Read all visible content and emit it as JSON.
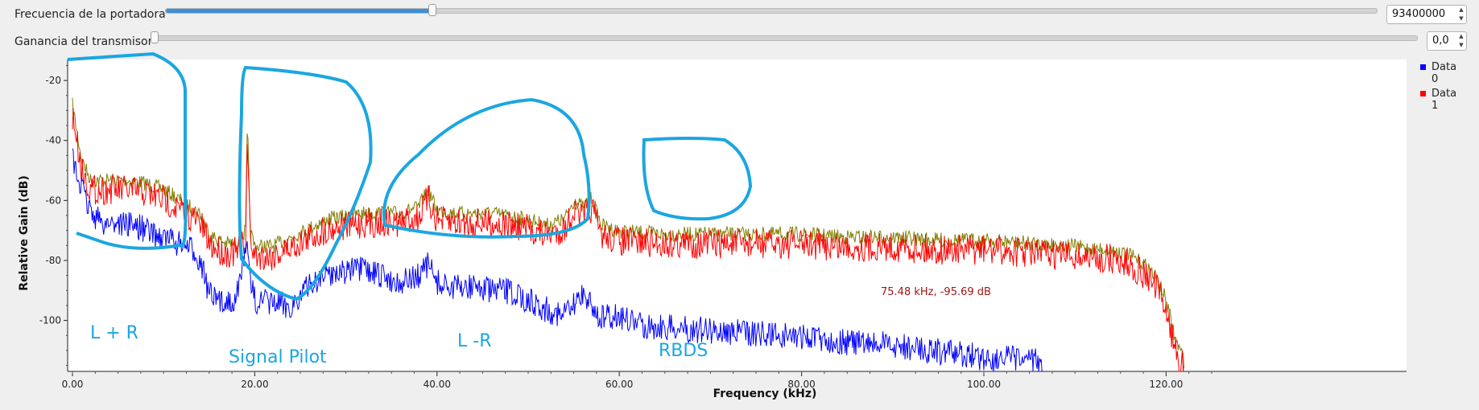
{
  "controls": {
    "carrier_frequency": {
      "label": "Frecuencia de la portadora",
      "value": "93400000",
      "slider_fraction": 0.22
    },
    "transmitter_gain": {
      "label": "Ganancia del transmisor",
      "value": "0,0",
      "slider_fraction": 0.0
    }
  },
  "hover_readout": "75.48 kHz, -95.69 dB",
  "annotations": [
    {
      "text": "L + R"
    },
    {
      "text": "Signal Pilot"
    },
    {
      "text": "L -R"
    },
    {
      "text": "RBDS"
    }
  ],
  "colors": {
    "data0": "#0000ff",
    "data1": "#ff0000",
    "data1_peak": "#808000",
    "annotation": "#1ba6e0",
    "slider_fill": "#3d8fd6"
  },
  "chart_data": {
    "type": "line",
    "title": "",
    "xlabel": "Frequency (kHz)",
    "ylabel": "Relative Gain (dB)",
    "xlim": [
      0,
      125
    ],
    "ylim": [
      -117,
      -13
    ],
    "x_ticks": [
      0,
      20,
      40,
      60,
      80,
      100,
      120
    ],
    "x_tick_labels": [
      "0.00",
      "20.00",
      "40.00",
      "60.00",
      "80.00",
      "100.00",
      "120.00"
    ],
    "y_ticks": [
      -20,
      -40,
      -60,
      -80,
      -100
    ],
    "y_tick_labels": [
      "-20",
      "-40",
      "-60",
      "-80",
      "-100"
    ],
    "grid": false,
    "legend_position": "right",
    "series": [
      {
        "name": "Data 0",
        "color": "#0000ff",
        "x": [
          0,
          1,
          2,
          3,
          5,
          7,
          9,
          11,
          13,
          14,
          15,
          16,
          17,
          18,
          18.5,
          19,
          19.5,
          20,
          22,
          24,
          26,
          28,
          30,
          32,
          34,
          36,
          38,
          39,
          40,
          42,
          44,
          46,
          48,
          50,
          52,
          54,
          55,
          56,
          57,
          58,
          60,
          62,
          65,
          70,
          75,
          80,
          85,
          90,
          95,
          100,
          105,
          106.5
        ],
        "y": [
          -45,
          -55,
          -62,
          -66,
          -66,
          -67,
          -70,
          -72,
          -75,
          -78,
          -90,
          -93,
          -92,
          -91,
          -84,
          -72,
          -85,
          -92,
          -93,
          -94,
          -87,
          -83,
          -82,
          -82,
          -84,
          -86,
          -84,
          -80,
          -86,
          -88,
          -87,
          -89,
          -89,
          -92,
          -95,
          -97,
          -94,
          -89,
          -94,
          -98,
          -97,
          -100,
          -101,
          -102,
          -103,
          -104,
          -106,
          -107,
          -109,
          -111,
          -112,
          -113
        ]
      },
      {
        "name": "Data 1",
        "color": "#ff0000",
        "x": [
          0,
          1,
          2,
          4,
          6,
          8,
          10,
          12,
          14,
          15,
          16,
          17,
          18,
          19,
          19.2,
          19.5,
          20,
          22,
          24,
          26,
          28,
          30,
          32,
          34,
          36,
          38,
          39,
          40,
          42,
          44,
          46,
          48,
          50,
          52,
          54,
          55,
          56,
          57,
          58,
          60,
          65,
          70,
          75,
          80,
          85,
          90,
          95,
          100,
          105,
          110,
          112,
          114,
          116,
          118,
          119,
          120,
          121,
          122
        ],
        "y": [
          -30,
          -48,
          -55,
          -55,
          -55,
          -56,
          -58,
          -62,
          -66,
          -73,
          -75,
          -76,
          -76,
          -72,
          -36,
          -72,
          -77,
          -77,
          -74,
          -71,
          -68,
          -67,
          -66,
          -66,
          -66,
          -64,
          -58,
          -65,
          -66,
          -66,
          -66,
          -67,
          -68,
          -70,
          -68,
          -62,
          -64,
          -61,
          -70,
          -72,
          -73,
          -73,
          -73,
          -73,
          -74,
          -74,
          -75,
          -75,
          -76,
          -77,
          -78,
          -78,
          -80,
          -84,
          -88,
          -95,
          -108,
          -115
        ]
      }
    ]
  }
}
